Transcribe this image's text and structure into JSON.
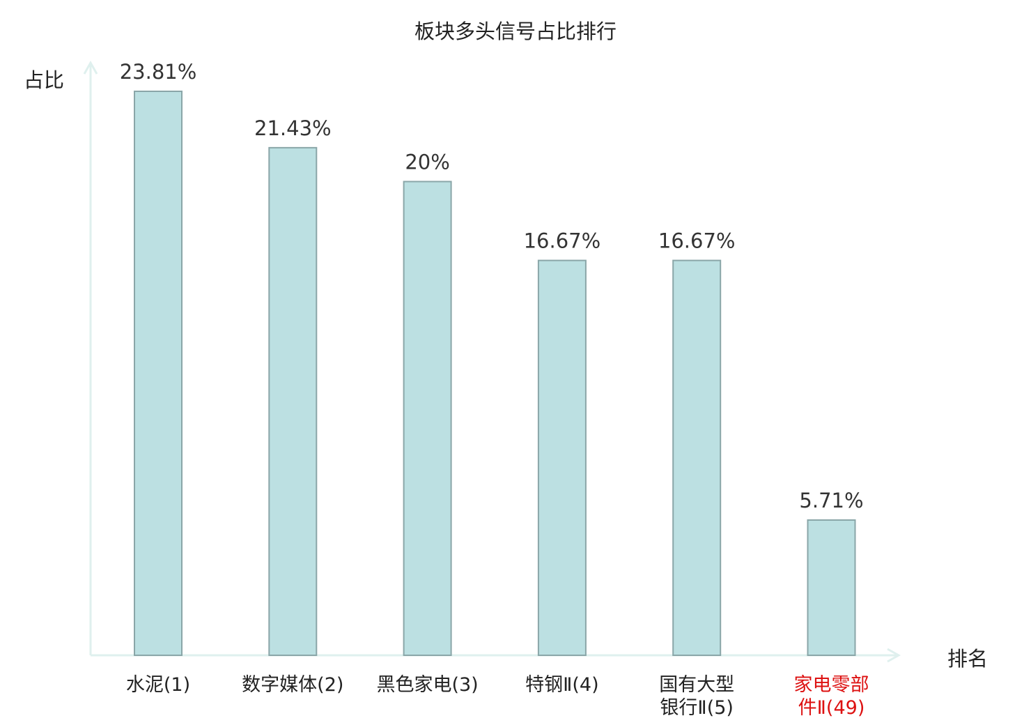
{
  "chart_data": {
    "type": "bar",
    "title": "板块多头信号占比排行",
    "ylabel": "占比",
    "xlabel": "排名",
    "categories": [
      "水泥(1)",
      "数字媒体(2)",
      "黑色家电(3)",
      "特钢Ⅱ(4)",
      "国有大型\n银行Ⅱ(5)",
      "家电零部\n件Ⅱ(49)"
    ],
    "values": [
      23.81,
      21.43,
      20,
      16.67,
      16.67,
      5.71
    ],
    "value_labels": [
      "23.81%",
      "21.43%",
      "20%",
      "16.67%",
      "16.67%",
      "5.71%"
    ],
    "highlight_index": 5,
    "ylim": [
      0,
      25
    ],
    "grid": false,
    "colors": {
      "bar_fill": "#bce0e2",
      "bar_stroke": "#8aa6a8",
      "axis": "#dff0ee",
      "highlight_text": "#dd1111",
      "text": "#222222",
      "value_text": "#333333"
    }
  }
}
